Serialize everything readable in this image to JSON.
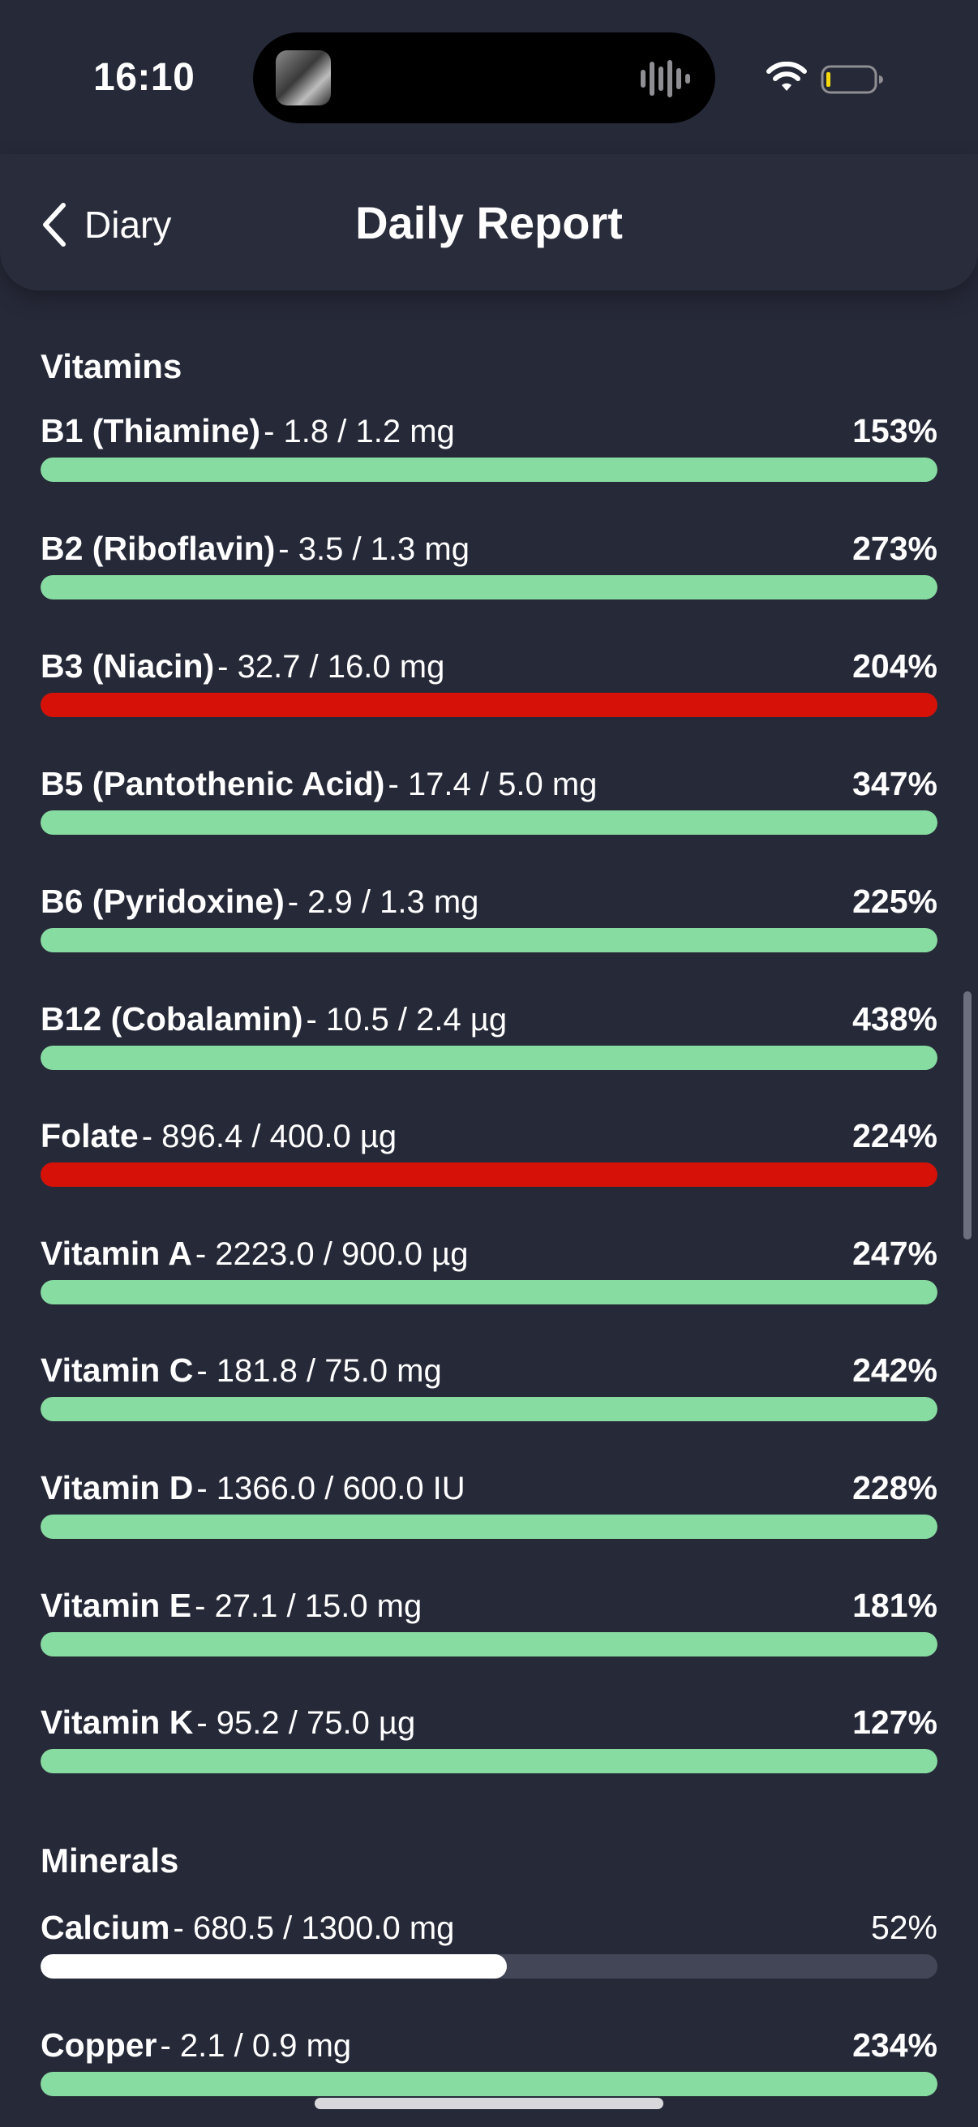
{
  "status_bar": {
    "time": "16:10"
  },
  "nav": {
    "back_label": "Diary",
    "title": "Daily Report"
  },
  "colors": {
    "background": "#262938",
    "ok": "#87dca1",
    "exceeded": "#d61107",
    "low": "#ffffff",
    "track": "#434656"
  },
  "sections": [
    {
      "title": "Vitamins",
      "items": [
        {
          "name": "B1 (Thiamine)",
          "amount": "- 1.8 / 1.2 mg",
          "percent": "153%",
          "fill": 1.0,
          "status": "ok"
        },
        {
          "name": "B2 (Riboflavin)",
          "amount": "- 3.5 / 1.3 mg",
          "percent": "273%",
          "fill": 1.0,
          "status": "ok"
        },
        {
          "name": "B3 (Niacin)",
          "amount": "- 32.7 / 16.0 mg",
          "percent": "204%",
          "fill": 1.0,
          "status": "exceeded"
        },
        {
          "name": "B5 (Pantothenic Acid)",
          "amount": "- 17.4 / 5.0 mg",
          "percent": "347%",
          "fill": 1.0,
          "status": "ok"
        },
        {
          "name": "B6 (Pyridoxine)",
          "amount": "- 2.9 / 1.3 mg",
          "percent": "225%",
          "fill": 1.0,
          "status": "ok"
        },
        {
          "name": "B12 (Cobalamin)",
          "amount": "- 10.5 / 2.4 µg",
          "percent": "438%",
          "fill": 1.0,
          "status": "ok"
        },
        {
          "name": "Folate",
          "amount": "- 896.4 / 400.0 µg",
          "percent": "224%",
          "fill": 1.0,
          "status": "exceeded"
        },
        {
          "name": "Vitamin A",
          "amount": "- 2223.0 / 900.0 µg",
          "percent": "247%",
          "fill": 1.0,
          "status": "ok"
        },
        {
          "name": "Vitamin C",
          "amount": "- 181.8 / 75.0 mg",
          "percent": "242%",
          "fill": 1.0,
          "status": "ok"
        },
        {
          "name": "Vitamin D",
          "amount": "- 1366.0 / 600.0 IU",
          "percent": "228%",
          "fill": 1.0,
          "status": "ok"
        },
        {
          "name": "Vitamin E",
          "amount": "- 27.1 / 15.0 mg",
          "percent": "181%",
          "fill": 1.0,
          "status": "ok"
        },
        {
          "name": "Vitamin K",
          "amount": "- 95.2 / 75.0 µg",
          "percent": "127%",
          "fill": 1.0,
          "status": "ok"
        }
      ]
    },
    {
      "title": "Minerals",
      "items": [
        {
          "name": "Calcium",
          "amount": "- 680.5 / 1300.0 mg",
          "percent": "52%",
          "fill": 0.52,
          "status": "low"
        },
        {
          "name": "Copper",
          "amount": "- 2.1 / 0.9 mg",
          "percent": "234%",
          "fill": 1.0,
          "status": "ok"
        }
      ]
    }
  ]
}
